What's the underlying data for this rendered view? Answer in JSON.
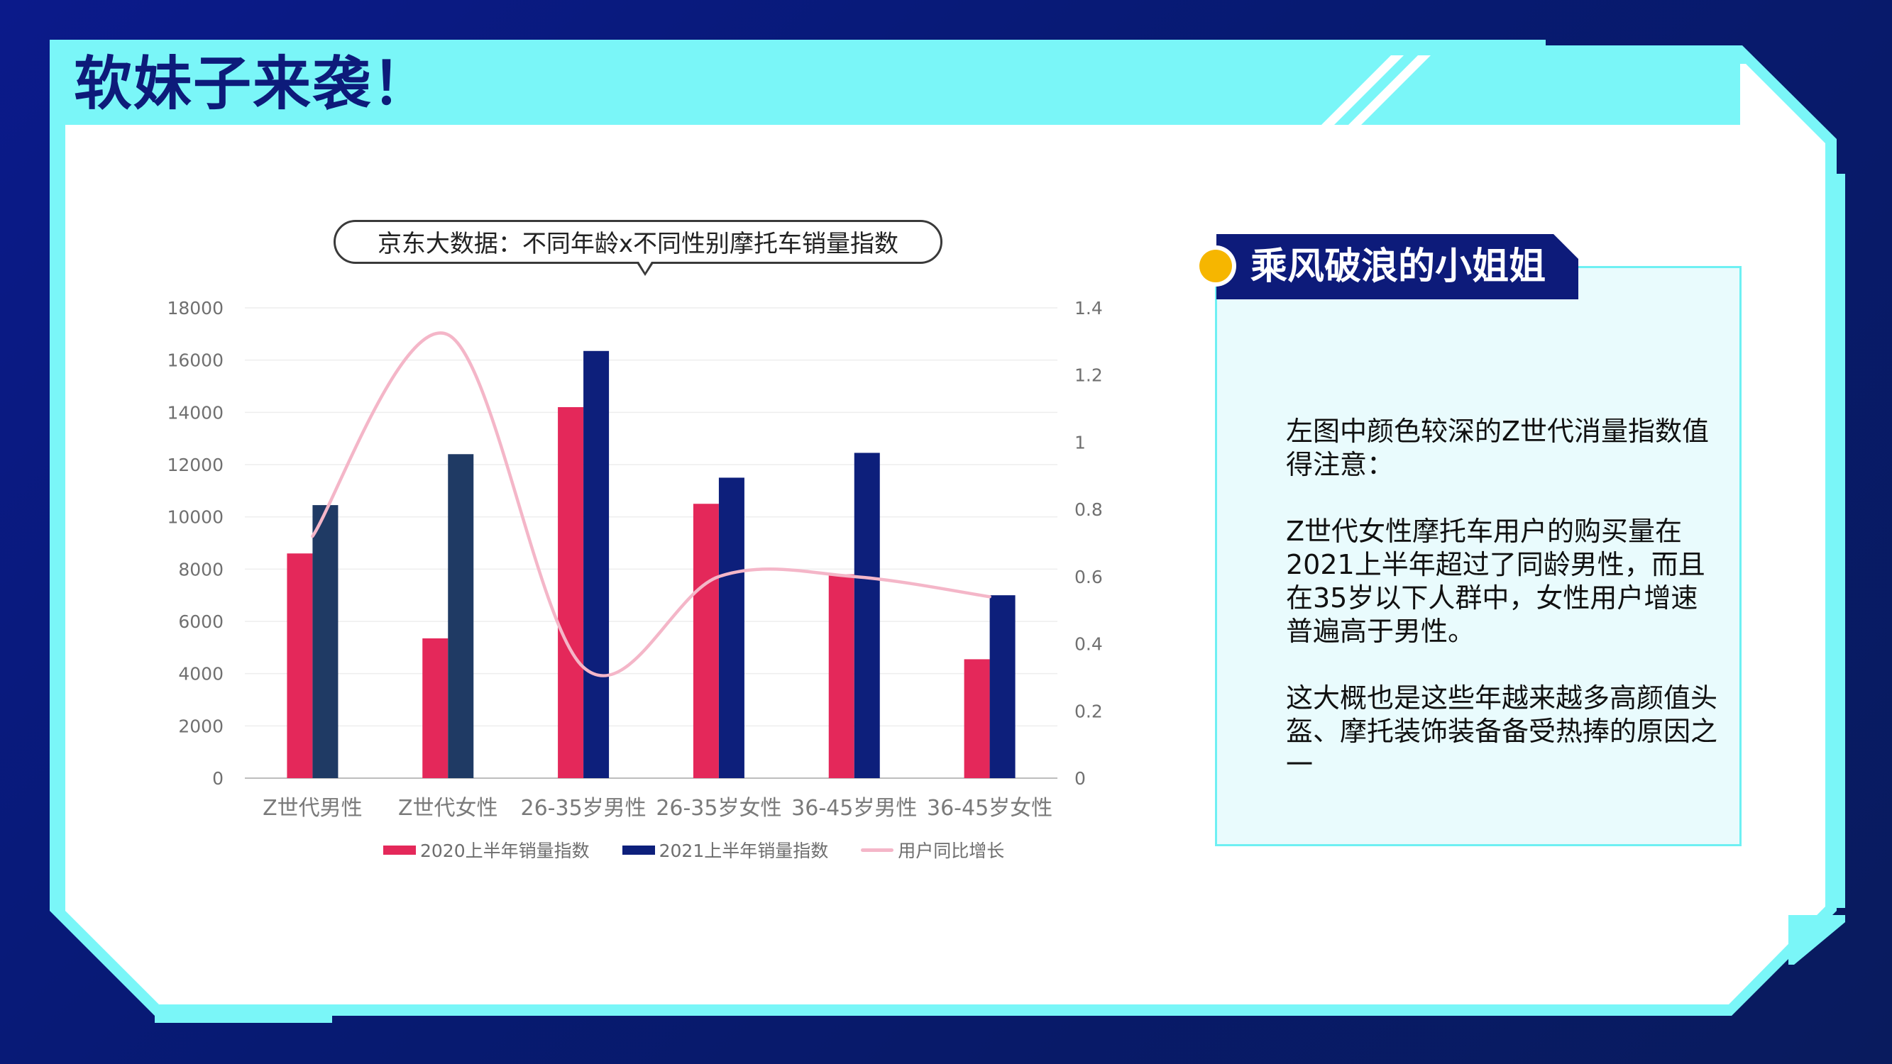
{
  "page": {
    "title": "软妹子来袭！"
  },
  "colors": {
    "accent_cyan": "#7af6f8",
    "navy": "#0d1b7a",
    "series_2020": "#e4285a",
    "series_2021": "#0d1f7b",
    "series_2021_zgen": "#1f3a64",
    "growth_line": "#f4b6c8",
    "panel_dot": "#f6b600"
  },
  "chart_data": {
    "type": "bar",
    "title": "京东大数据：不同年龄x不同性别摩托车销量指数",
    "categories": [
      "Z世代男性",
      "Z世代女性",
      "26-35岁男性",
      "26-35岁女性",
      "36-45岁男性",
      "36-45岁女性"
    ],
    "series": [
      {
        "name": "2020上半年销量指数",
        "type": "bar",
        "axis": "left",
        "values": [
          8600,
          5350,
          14200,
          10500,
          7800,
          4550
        ]
      },
      {
        "name": "2021上半年销量指数",
        "type": "bar",
        "axis": "left",
        "values": [
          10450,
          12400,
          16350,
          11500,
          12450,
          7000
        ]
      },
      {
        "name": "用户同比增长",
        "type": "line",
        "smooth": true,
        "axis": "right",
        "values": [
          0.72,
          1.32,
          0.33,
          0.6,
          0.6,
          0.54
        ]
      }
    ],
    "y_left": {
      "min": 0,
      "max": 18000,
      "ticks": [
        "0",
        "2000",
        "4000",
        "6000",
        "8000",
        "10000",
        "12000",
        "14000",
        "16000",
        "18000"
      ]
    },
    "y_right": {
      "min": 0,
      "max": 1.4,
      "ticks": [
        "0",
        "0.2",
        "0.4",
        "0.6",
        "0.8",
        "1",
        "1.2",
        "1.4"
      ]
    },
    "grid": true,
    "legend": "bottom"
  },
  "panel": {
    "title": "乘风破浪的小姐姐",
    "paragraphs": [
      "左图中颜色较深的Z世代消量指数值得注意：",
      "Z世代女性摩托车用户的购买量在2021上半年超过了同龄男性，而且在35岁以下人群中，女性用户增速普遍高于男性。",
      "这大概也是这些年越来越多高颜值头盔、摩托装饰装备备受热捧的原因之一"
    ]
  }
}
